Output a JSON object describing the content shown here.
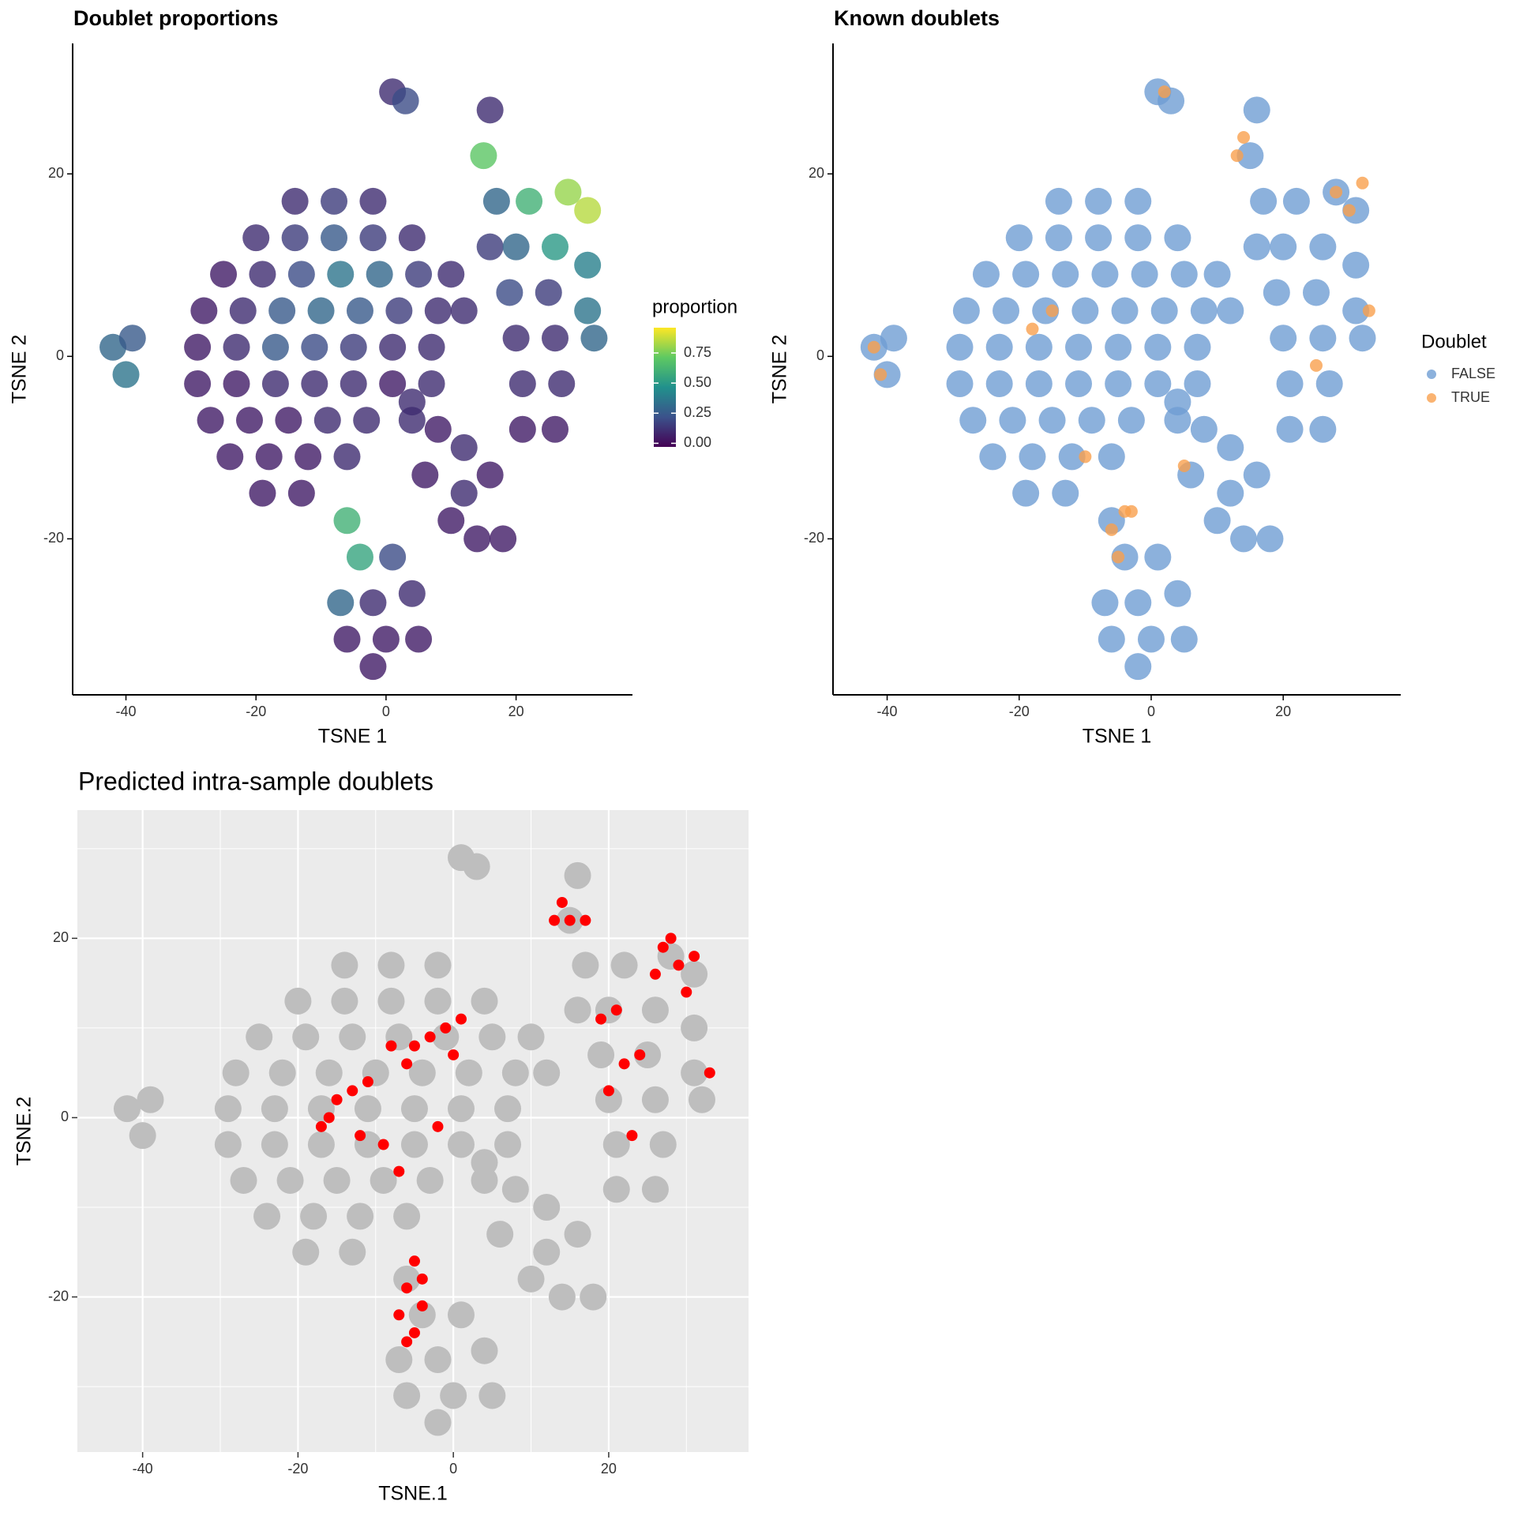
{
  "chart_data": [
    {
      "type": "scatter",
      "title": "Doublet proportions",
      "xlabel": "TSNE 1",
      "ylabel": "TSNE 2",
      "xlim": [
        -48.2,
        37.9
      ],
      "ylim": [
        -37.1,
        34.3
      ],
      "xticks": [
        -40,
        -20,
        0,
        20
      ],
      "yticks": [
        -20,
        0,
        20
      ],
      "grid": false,
      "x": [
        -14,
        -8,
        -2,
        -20,
        -14,
        -8,
        -2,
        4,
        -25,
        -19,
        -13,
        -7,
        -1,
        5,
        10,
        -28,
        -22,
        -16,
        -10,
        -4,
        2,
        8,
        12,
        -29,
        -23,
        -17,
        -11,
        -5,
        1,
        7,
        -29,
        -23,
        -17,
        -11,
        -5,
        1,
        7,
        -27,
        -21,
        -15,
        -9,
        -3,
        4,
        -24,
        -18,
        -12,
        -6,
        -19,
        -13,
        -42,
        -40,
        -39,
        1,
        3,
        16,
        15,
        17,
        16,
        22,
        28,
        31,
        20,
        26,
        31,
        19,
        25,
        31,
        20,
        26,
        32,
        21,
        27,
        21,
        26,
        4,
        8,
        12,
        6,
        12,
        16,
        14,
        18,
        10,
        -6,
        -4,
        1,
        -7,
        -2,
        4,
        -6,
        0,
        5,
        -2
      ],
      "values": [
        17,
        17,
        17,
        13,
        13,
        13,
        13,
        13,
        9,
        9,
        9,
        9,
        9,
        9,
        9,
        5,
        5,
        5,
        5,
        5,
        5,
        5,
        5,
        1,
        1,
        1,
        1,
        1,
        1,
        1,
        -3,
        -3,
        -3,
        -3,
        -3,
        -3,
        -3,
        -7,
        -7,
        -7,
        -7,
        -7,
        -7,
        -11,
        -11,
        -11,
        -11,
        -15,
        -15,
        1,
        -2,
        2,
        29,
        28,
        27,
        22,
        17,
        12,
        17,
        18,
        16,
        12,
        12,
        10,
        7,
        7,
        5,
        2,
        2,
        2,
        -3,
        -3,
        -8,
        -8,
        -5,
        -8,
        -10,
        -13,
        -15,
        -13,
        -20,
        -20,
        -18,
        -18,
        -22,
        -22,
        -27,
        -27,
        -26,
        -31,
        -31,
        -31,
        -34
      ],
      "color_values": [
        0.1,
        0.15,
        0.1,
        0.1,
        0.15,
        0.25,
        0.15,
        0.1,
        0.05,
        0.1,
        0.2,
        0.35,
        0.3,
        0.15,
        0.1,
        0.05,
        0.1,
        0.25,
        0.3,
        0.25,
        0.15,
        0.1,
        0.1,
        0.05,
        0.1,
        0.25,
        0.2,
        0.15,
        0.1,
        0.1,
        0.05,
        0.05,
        0.1,
        0.1,
        0.1,
        0.05,
        0.1,
        0.05,
        0.05,
        0.05,
        0.1,
        0.1,
        0.1,
        0.05,
        0.05,
        0.05,
        0.1,
        0.05,
        0.05,
        0.3,
        0.35,
        0.25,
        0.1,
        0.2,
        0.1,
        0.7,
        0.3,
        0.15,
        0.6,
        0.8,
        0.85,
        0.3,
        0.5,
        0.4,
        0.2,
        0.15,
        0.35,
        0.1,
        0.1,
        0.3,
        0.1,
        0.1,
        0.05,
        0.05,
        0.1,
        0.05,
        0.1,
        0.05,
        0.1,
        0.05,
        0.05,
        0.05,
        0.05,
        0.6,
        0.55,
        0.2,
        0.3,
        0.1,
        0.1,
        0.05,
        0.05,
        0.05,
        0.05
      ],
      "colormap": "viridis",
      "legend": "right",
      "colorbar": {
        "title": "proportion",
        "lim": [
          -0.03,
          0.96
        ],
        "ticks": [
          {
            "value": 0,
            "label": "0.00"
          },
          0.25,
          {
            "value": 0.5,
            "label": "0.50"
          },
          0.75
        ]
      }
    },
    {
      "type": "scatter",
      "title": "Known doublets",
      "xlabel": "TSNE 1",
      "ylabel": "TSNE 2",
      "xlim": [
        -48.2,
        37.8
      ],
      "ylim": [
        -37.1,
        34.3
      ],
      "xticks": [
        -40,
        -20,
        0,
        20
      ],
      "yticks": [
        -20,
        0,
        20
      ],
      "grid": false,
      "legend": "right",
      "legend_title": "Doublet",
      "series": [
        {
          "name": "FALSE",
          "color": "#6f9dd3",
          "x": [
            -14,
            -8,
            -2,
            -20,
            -14,
            -8,
            -2,
            4,
            -25,
            -19,
            -13,
            -7,
            -1,
            5,
            10,
            -28,
            -22,
            -16,
            -10,
            -4,
            2,
            8,
            12,
            -29,
            -23,
            -17,
            -11,
            -5,
            1,
            7,
            -29,
            -23,
            -17,
            -11,
            -5,
            1,
            7,
            -27,
            -21,
            -15,
            -9,
            -3,
            4,
            -24,
            -18,
            -12,
            -6,
            -19,
            -13,
            -42,
            -40,
            -39,
            1,
            3,
            16,
            15,
            17,
            16,
            22,
            28,
            31,
            20,
            26,
            31,
            19,
            25,
            31,
            20,
            26,
            32,
            21,
            27,
            21,
            26,
            4,
            8,
            12,
            6,
            12,
            16,
            14,
            18,
            10,
            -6,
            -4,
            1,
            -7,
            -2,
            4,
            -6,
            0,
            5,
            -2
          ],
          "values": [
            17,
            17,
            17,
            13,
            13,
            13,
            13,
            13,
            9,
            9,
            9,
            9,
            9,
            9,
            9,
            5,
            5,
            5,
            5,
            5,
            5,
            5,
            5,
            1,
            1,
            1,
            1,
            1,
            1,
            1,
            -3,
            -3,
            -3,
            -3,
            -3,
            -3,
            -3,
            -7,
            -7,
            -7,
            -7,
            -7,
            -7,
            -11,
            -11,
            -11,
            -11,
            -15,
            -15,
            1,
            -2,
            2,
            29,
            28,
            27,
            22,
            17,
            12,
            17,
            18,
            16,
            12,
            12,
            10,
            7,
            7,
            5,
            2,
            2,
            2,
            -3,
            -3,
            -8,
            -8,
            -5,
            -8,
            -10,
            -13,
            -15,
            -13,
            -20,
            -20,
            -18,
            -18,
            -22,
            -22,
            -27,
            -27,
            -26,
            -31,
            -31,
            -31,
            -34
          ]
        },
        {
          "name": "TRUE",
          "color": "#f9a04e",
          "x": [
            28,
            30,
            32,
            13,
            14,
            -6,
            -5,
            -3,
            -42,
            -41,
            2,
            33,
            -18,
            5,
            -10,
            -4,
            -15,
            25
          ],
          "values": [
            18,
            16,
            19,
            22,
            24,
            -19,
            -22,
            -17,
            1,
            -2,
            29,
            5,
            3,
            -12,
            -11,
            -17,
            5,
            -1
          ]
        }
      ]
    },
    {
      "type": "scatter",
      "title": "Predicted intra-sample doublets",
      "xlabel": "TSNE.1",
      "ylabel": "TSNE.2",
      "xlim": [
        -48.4,
        38
      ],
      "ylim": [
        -37.3,
        34.3
      ],
      "xticks": [
        -40,
        -20,
        0,
        20
      ],
      "yticks": [
        -20,
        0,
        20
      ],
      "grid": true,
      "xminor": [
        -30,
        -10,
        10,
        30
      ],
      "yminor": [
        -30,
        -10,
        10,
        30
      ],
      "series": [
        {
          "color": "#bebebe",
          "x": [
            -14,
            -8,
            -2,
            -20,
            -14,
            -8,
            -2,
            4,
            -25,
            -19,
            -13,
            -7,
            -1,
            5,
            10,
            -28,
            -22,
            -16,
            -10,
            -4,
            2,
            8,
            12,
            -29,
            -23,
            -17,
            -11,
            -5,
            1,
            7,
            -29,
            -23,
            -17,
            -11,
            -5,
            1,
            7,
            -27,
            -21,
            -15,
            -9,
            -3,
            4,
            -24,
            -18,
            -12,
            -6,
            -19,
            -13,
            -42,
            -40,
            -39,
            1,
            3,
            16,
            15,
            17,
            16,
            22,
            28,
            31,
            20,
            26,
            31,
            19,
            25,
            31,
            20,
            26,
            32,
            21,
            27,
            21,
            26,
            4,
            8,
            12,
            6,
            12,
            16,
            14,
            18,
            10,
            -6,
            -4,
            1,
            -7,
            -2,
            4,
            -6,
            0,
            5,
            -2
          ],
          "values": [
            17,
            17,
            17,
            13,
            13,
            13,
            13,
            13,
            9,
            9,
            9,
            9,
            9,
            9,
            9,
            5,
            5,
            5,
            5,
            5,
            5,
            5,
            5,
            1,
            1,
            1,
            1,
            1,
            1,
            1,
            -3,
            -3,
            -3,
            -3,
            -3,
            -3,
            -3,
            -7,
            -7,
            -7,
            -7,
            -7,
            -7,
            -11,
            -11,
            -11,
            -11,
            -15,
            -15,
            1,
            -2,
            2,
            29,
            28,
            27,
            22,
            17,
            12,
            17,
            18,
            16,
            12,
            12,
            10,
            7,
            7,
            5,
            2,
            2,
            2,
            -3,
            -3,
            -8,
            -8,
            -5,
            -8,
            -10,
            -13,
            -15,
            -13,
            -20,
            -20,
            -18,
            -18,
            -22,
            -22,
            -27,
            -27,
            -26,
            -31,
            -31,
            -31,
            -34
          ]
        },
        {
          "color": "#ff0000",
          "x": [
            -5,
            -3,
            -1,
            0,
            -6,
            -8,
            1,
            -13,
            -11,
            -15,
            -16,
            -12,
            -9,
            -5,
            -6,
            -4,
            -5,
            -7,
            -6,
            -4,
            14,
            15,
            13,
            17,
            27,
            29,
            31,
            30,
            26,
            28,
            19,
            21,
            24,
            20,
            23,
            33,
            22,
            -7,
            -2,
            -17
          ],
          "values": [
            8,
            9,
            10,
            7,
            6,
            8,
            11,
            3,
            4,
            2,
            0,
            -2,
            -3,
            -16,
            -19,
            -21,
            -24,
            -22,
            -25,
            -18,
            24,
            22,
            22,
            22,
            19,
            17,
            18,
            14,
            16,
            20,
            11,
            12,
            7,
            3,
            -2,
            5,
            6,
            -6,
            -1,
            -1
          ]
        }
      ]
    }
  ]
}
